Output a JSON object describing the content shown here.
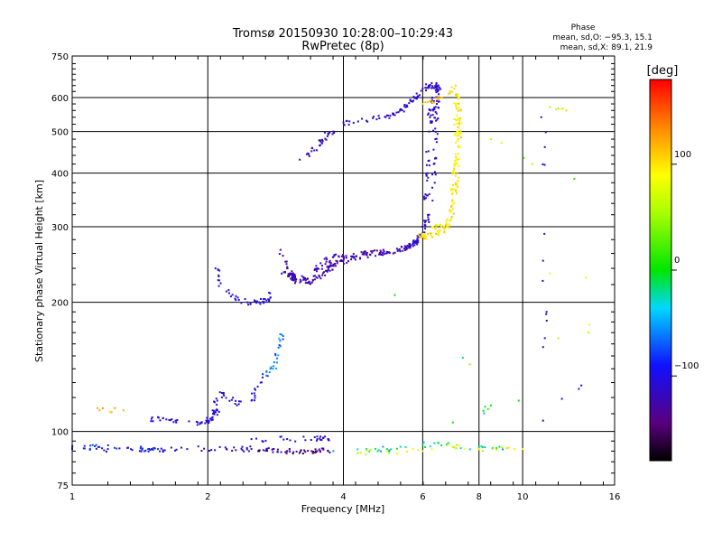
{
  "chart_data": {
    "type": "scatter",
    "title": "Tromsø 20150930 10:28:00–10:29:43",
    "subtitle": "RwPretec (8p)",
    "xlabel": "Frequency [MHz]",
    "ylabel": "Stationary phase Virtual Height [km]",
    "x_scale": "log2",
    "y_scale": "log",
    "xlim": [
      1,
      16
    ],
    "ylim": [
      75,
      750
    ],
    "x_ticks": [
      "1",
      "2",
      "4",
      "6",
      "8",
      "10",
      "16"
    ],
    "x_tick_values": [
      1,
      2,
      4,
      6,
      8,
      10,
      16
    ],
    "y_ticks": [
      "75",
      "100",
      "200",
      "300",
      "400",
      "500",
      "600",
      "750"
    ],
    "y_tick_values": [
      75,
      100,
      200,
      300,
      400,
      500,
      600,
      750
    ],
    "grid": true,
    "phase_box": {
      "heading": "Phase",
      "line_o": "mean, sd,O: −95.3, 15.1",
      "line_x": "mean, sd,X:  89.1, 21.9"
    },
    "colorbar": {
      "label": "[deg]",
      "range": [
        -180,
        180
      ],
      "ticks": [
        "100",
        "0",
        "−100"
      ],
      "tick_values": [
        100,
        0,
        -100
      ]
    },
    "series": [
      {
        "name": "O",
        "mean_phase": -95.3,
        "sd_phase": 15.1
      },
      {
        "name": "X",
        "mean_phase": 89.1,
        "sd_phase": 21.9
      }
    ],
    "clusters": [
      {
        "phase": -110,
        "spread": 10,
        "dots": 70,
        "points": [
          [
            1.0,
            91
          ],
          [
            1.2,
            91
          ],
          [
            1.5,
            91
          ],
          [
            1.8,
            91
          ],
          [
            2.2,
            91
          ],
          [
            2.5,
            91
          ],
          [
            3.0,
            90
          ],
          [
            3.5,
            90
          ],
          [
            3.8,
            90
          ]
        ]
      },
      {
        "phase": -110,
        "spread": 8,
        "dots": 25,
        "points": [
          [
            2.5,
            96
          ],
          [
            3.0,
            96
          ],
          [
            3.5,
            96
          ],
          [
            3.7,
            96
          ]
        ]
      },
      {
        "phase": -80,
        "spread": 8,
        "dots": 20,
        "points": [
          [
            1.0,
            92
          ],
          [
            1.15,
            92
          ],
          [
            1.35,
            91
          ],
          [
            1.55,
            91
          ]
        ]
      },
      {
        "phase": -150,
        "spread": 15,
        "dots": 25,
        "points": [
          [
            2.6,
            90
          ],
          [
            3.0,
            90
          ],
          [
            3.4,
            90
          ],
          [
            3.7,
            90
          ]
        ]
      },
      {
        "phase": -20,
        "spread": 40,
        "dots": 30,
        "points": [
          [
            3.8,
            90
          ],
          [
            4.5,
            91
          ],
          [
            5.0,
            91
          ],
          [
            5.5,
            92
          ],
          [
            6.0,
            93
          ],
          [
            6.5,
            94
          ],
          [
            7.0,
            92
          ],
          [
            8.0,
            92
          ],
          [
            9.0,
            92
          ]
        ]
      },
      {
        "phase": 80,
        "spread": 30,
        "dots": 25,
        "points": [
          [
            4.3,
            89
          ],
          [
            5.0,
            90
          ],
          [
            6.0,
            90
          ],
          [
            7.0,
            92
          ],
          [
            8.0,
            91
          ],
          [
            9.0,
            92
          ],
          [
            10.0,
            91
          ]
        ]
      },
      {
        "phase": 120,
        "spread": 20,
        "dots": 5,
        "points": [
          [
            1.15,
            112
          ],
          [
            1.3,
            112
          ]
        ]
      },
      {
        "phase": -105,
        "spread": 10,
        "dots": 45,
        "points": [
          [
            1.5,
            107
          ],
          [
            1.7,
            106
          ],
          [
            1.9,
            105
          ],
          [
            2.0,
            106
          ],
          [
            2.05,
            108
          ],
          [
            2.1,
            112
          ]
        ]
      },
      {
        "phase": -105,
        "spread": 12,
        "dots": 30,
        "points": [
          [
            2.05,
            112
          ],
          [
            2.1,
            118
          ],
          [
            2.15,
            123
          ],
          [
            2.3,
            116
          ],
          [
            2.5,
            118
          ],
          [
            2.55,
            125
          ],
          [
            2.62,
            130
          ],
          [
            2.7,
            138
          ]
        ]
      },
      {
        "phase": -60,
        "spread": 20,
        "dots": 20,
        "points": [
          [
            2.7,
            135
          ],
          [
            2.8,
            142
          ],
          [
            2.85,
            148
          ],
          [
            2.9,
            158
          ],
          [
            2.92,
            168
          ]
        ]
      },
      {
        "phase": -105,
        "spread": 10,
        "dots": 40,
        "points": [
          [
            2.08,
            240
          ],
          [
            2.12,
            225
          ],
          [
            2.2,
            212
          ],
          [
            2.3,
            204
          ],
          [
            2.45,
            200
          ],
          [
            2.6,
            200
          ],
          [
            2.7,
            202
          ],
          [
            2.75,
            210
          ]
        ]
      },
      {
        "phase": -125,
        "spread": 15,
        "dots": 130,
        "points": [
          [
            2.9,
            265
          ],
          [
            3.0,
            240
          ],
          [
            3.1,
            225
          ],
          [
            3.3,
            222
          ],
          [
            3.5,
            228
          ],
          [
            3.7,
            238
          ],
          [
            3.8,
            245
          ],
          [
            4.0,
            250
          ],
          [
            4.5,
            258
          ],
          [
            5.0,
            262
          ],
          [
            5.3,
            265
          ],
          [
            5.5,
            268
          ],
          [
            5.8,
            275
          ]
        ]
      },
      {
        "phase": -120,
        "spread": 15,
        "dots": 80,
        "points": [
          [
            2.95,
            235
          ],
          [
            3.1,
            230
          ],
          [
            3.3,
            225
          ],
          [
            3.5,
            240
          ],
          [
            3.8,
            255
          ],
          [
            4.0,
            255
          ],
          [
            4.5,
            260
          ],
          [
            5.0,
            262
          ]
        ]
      },
      {
        "phase": -110,
        "spread": 10,
        "dots": 70,
        "points": [
          [
            5.5,
            270
          ],
          [
            5.8,
            278
          ],
          [
            6.0,
            290
          ],
          [
            6.2,
            320
          ],
          [
            6.3,
            370
          ],
          [
            6.35,
            420
          ],
          [
            6.4,
            480
          ],
          [
            6.42,
            530
          ],
          [
            6.45,
            580
          ],
          [
            6.48,
            620
          ],
          [
            6.5,
            640
          ]
        ]
      },
      {
        "phase": -110,
        "spread": 10,
        "dots": 45,
        "points": [
          [
            5.6,
            270
          ],
          [
            5.9,
            285
          ],
          [
            6.05,
            310
          ],
          [
            6.1,
            350
          ],
          [
            6.15,
            400
          ],
          [
            6.18,
            450
          ],
          [
            6.2,
            500
          ],
          [
            6.25,
            560
          ],
          [
            6.3,
            600
          ]
        ]
      },
      {
        "phase": -110,
        "spread": 10,
        "dots": 70,
        "points": [
          [
            4.0,
            525
          ],
          [
            4.5,
            530
          ],
          [
            5.0,
            545
          ],
          [
            5.3,
            555
          ],
          [
            5.5,
            570
          ],
          [
            5.8,
            600
          ],
          [
            6.0,
            630
          ],
          [
            6.2,
            640
          ],
          [
            6.5,
            640
          ]
        ]
      },
      {
        "phase": -115,
        "spread": 8,
        "dots": 25,
        "points": [
          [
            3.2,
            430
          ],
          [
            3.4,
            450
          ],
          [
            3.6,
            475
          ],
          [
            3.7,
            495
          ],
          [
            3.8,
            500
          ]
        ]
      },
      {
        "phase": 100,
        "spread": 15,
        "dots": 110,
        "points": [
          [
            5.9,
            285
          ],
          [
            6.1,
            285
          ],
          [
            6.5,
            290
          ],
          [
            6.8,
            300
          ],
          [
            7.0,
            330
          ],
          [
            7.1,
            380
          ],
          [
            7.15,
            430
          ],
          [
            7.2,
            480
          ],
          [
            7.25,
            530
          ],
          [
            7.2,
            580
          ],
          [
            7.05,
            630
          ]
        ]
      },
      {
        "phase": 90,
        "spread": 15,
        "dots": 50,
        "points": [
          [
            6.3,
            300
          ],
          [
            6.6,
            300
          ],
          [
            6.9,
            310
          ],
          [
            7.0,
            360
          ],
          [
            7.1,
            420
          ],
          [
            7.15,
            500
          ],
          [
            7.1,
            580
          ]
        ]
      },
      {
        "phase": 110,
        "spread": 10,
        "dots": 12,
        "points": [
          [
            6.0,
            580
          ],
          [
            6.3,
            585
          ],
          [
            6.6,
            600
          ],
          [
            6.9,
            620
          ],
          [
            7.1,
            640
          ]
        ]
      },
      {
        "phase": -110,
        "spread": 20,
        "dots": 10,
        "points": [
          [
            11.0,
            540
          ],
          [
            11.2,
            460
          ],
          [
            11.1,
            250
          ],
          [
            11.3,
            190
          ],
          [
            11.2,
            165
          ],
          [
            11.1,
            106
          ],
          [
            13.5,
            128
          ]
        ]
      },
      {
        "phase": 60,
        "spread": 50,
        "dots": 10,
        "points": [
          [
            11.5,
            570
          ],
          [
            12.5,
            560
          ],
          [
            14.0,
            170
          ],
          [
            12.0,
            165
          ],
          [
            10.5,
            420
          ],
          [
            8.5,
            480
          ]
        ]
      },
      {
        "phase": 0,
        "spread": 60,
        "dots": 6,
        "points": [
          [
            5.2,
            208
          ],
          [
            8.5,
            115
          ],
          [
            7.0,
            105
          ],
          [
            9.8,
            118
          ]
        ]
      }
    ]
  }
}
